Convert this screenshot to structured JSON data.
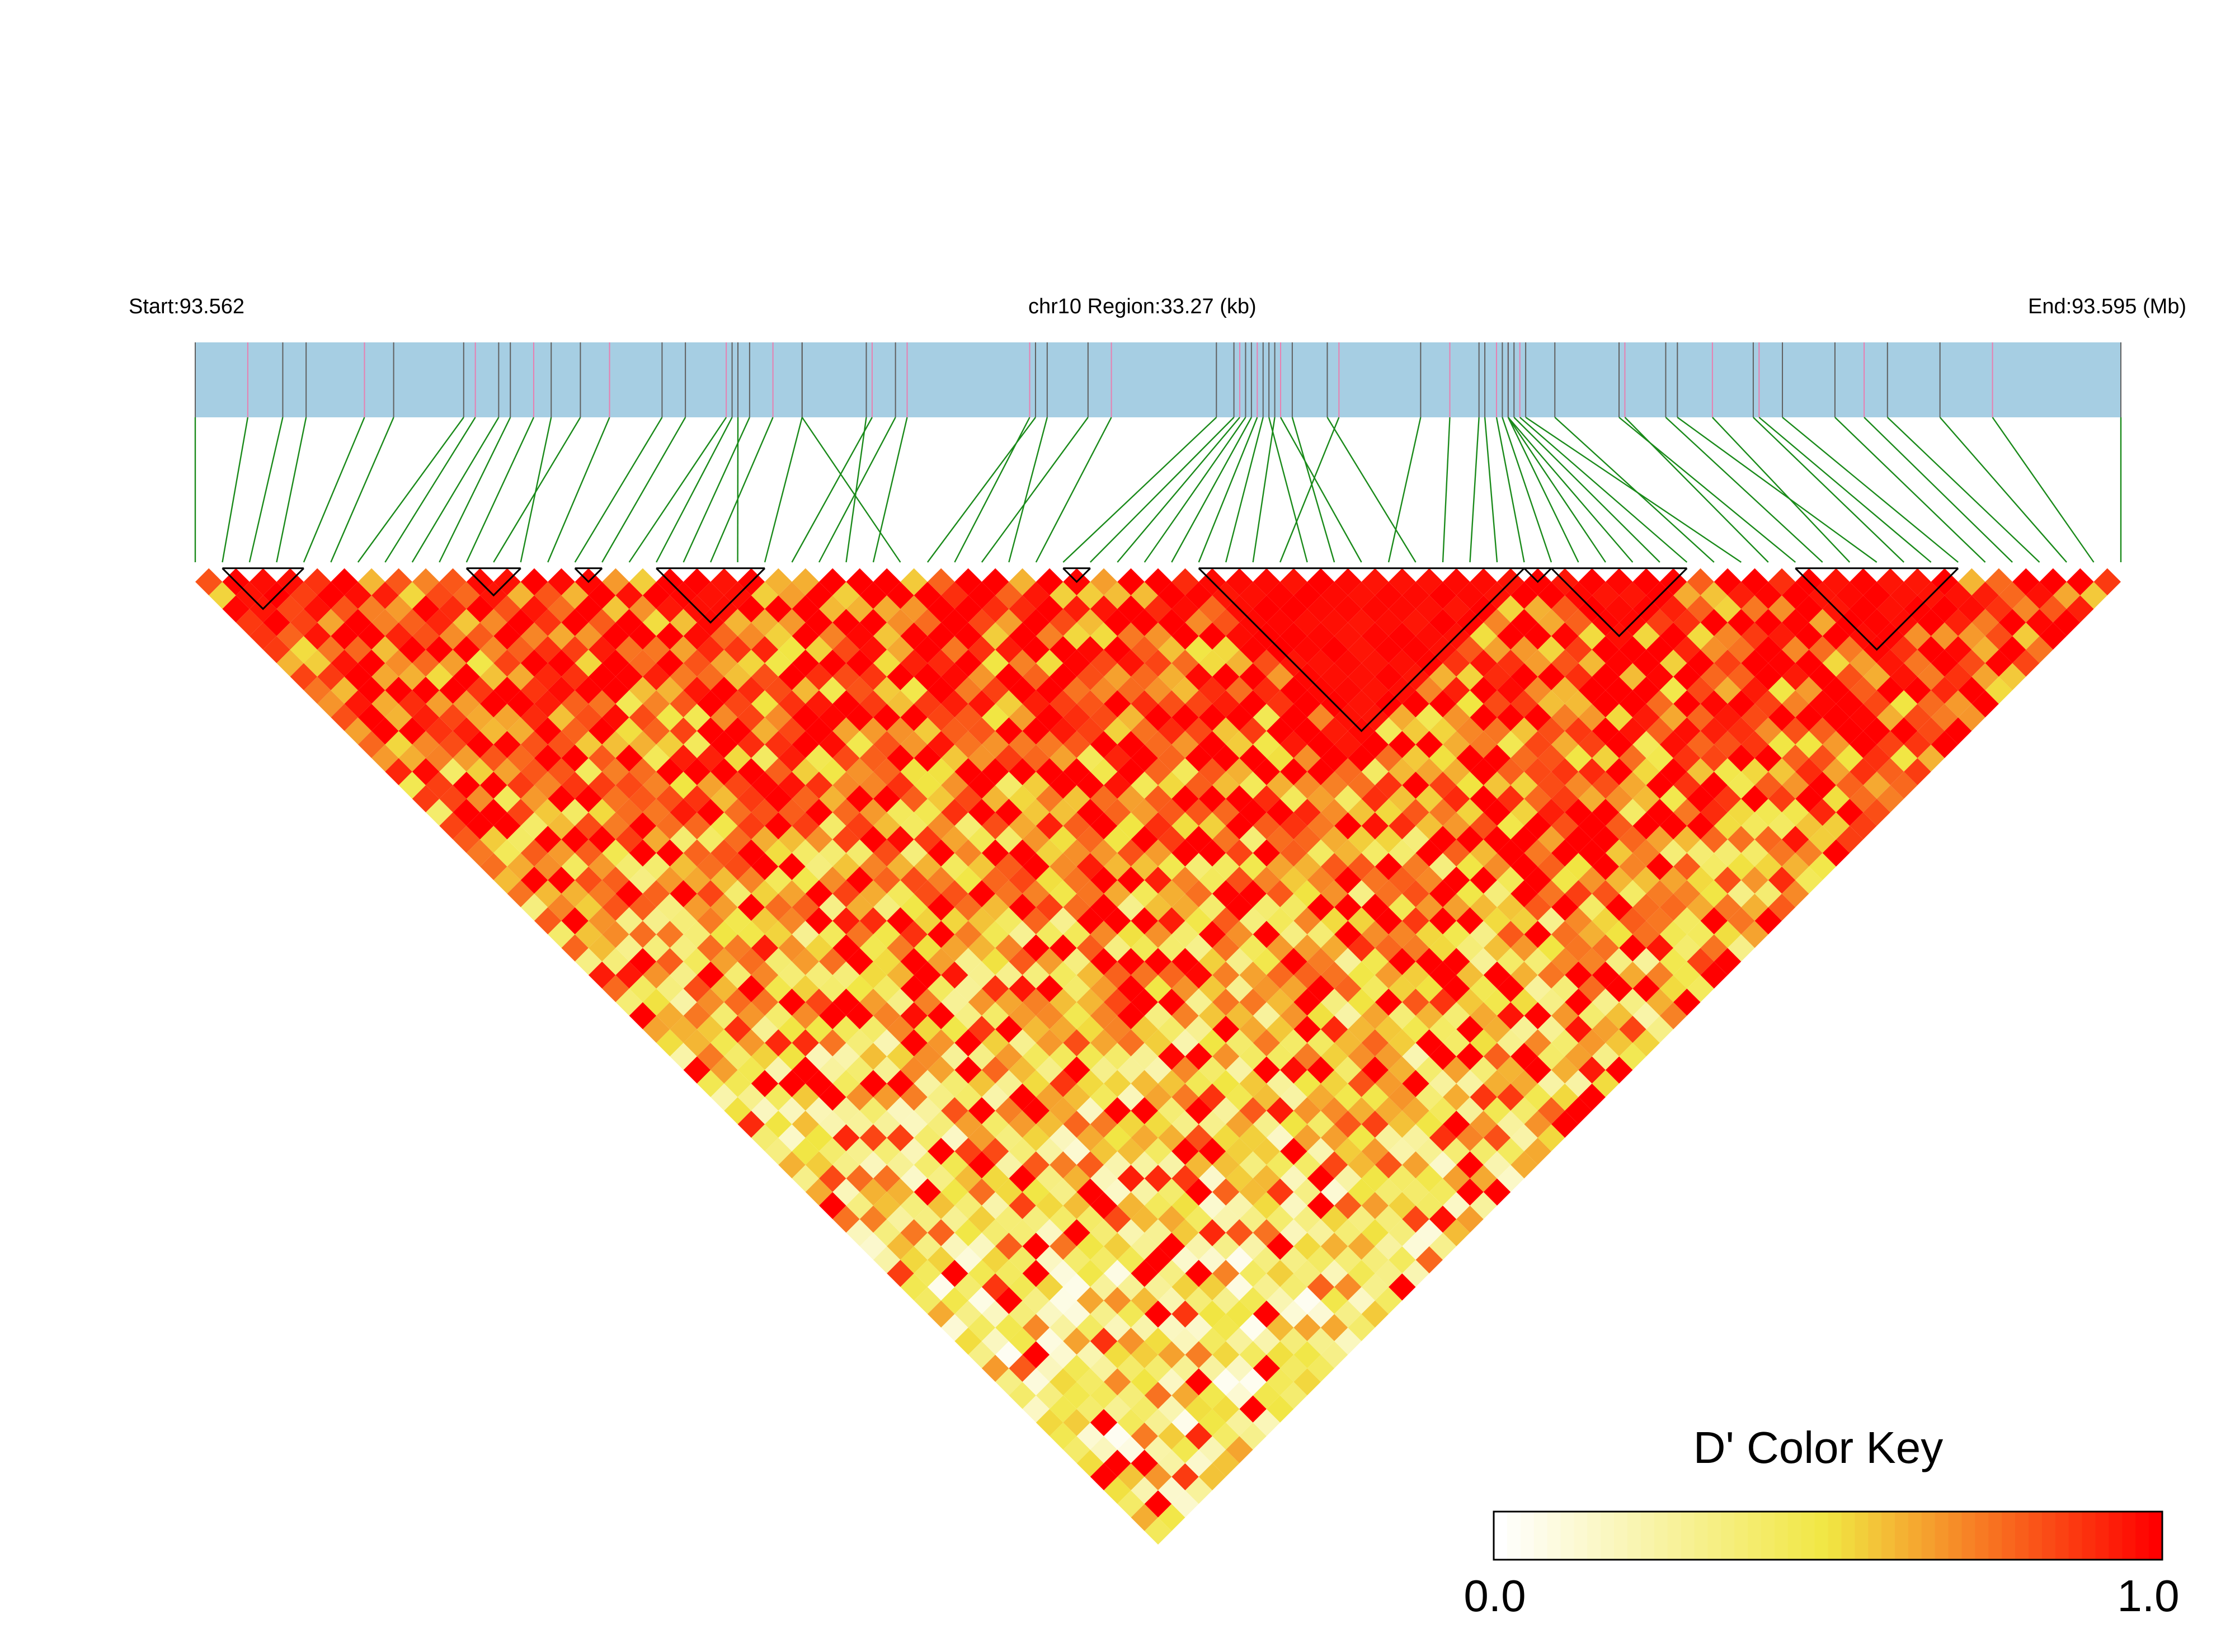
{
  "chart_data": {
    "type": "heatmap",
    "title": "",
    "start_label": "Start:93.562",
    "region_label": "chr10 Region:33.27 (kb)",
    "end_label": "End:93.595 (Mb)",
    "region_start_mb": 93.562,
    "region_end_mb": 93.595,
    "region_length_kb": 33.27,
    "snp_count": 72,
    "snp_positions_mb": [
      93.562,
      93.5629,
      93.5635,
      93.5639,
      93.5649,
      93.5654,
      93.5666,
      93.5668,
      93.5672,
      93.5674,
      93.5678,
      93.5686,
      93.5681,
      93.5691,
      93.57,
      93.5704,
      93.5711,
      93.5712,
      93.5715,
      93.5719,
      93.5713,
      93.5724,
      93.5736,
      93.574,
      93.5735,
      93.5742,
      93.5724,
      93.5764,
      93.5763,
      93.5773,
      93.5766,
      93.5777,
      93.5795,
      93.5798,
      93.5799,
      93.58,
      93.5801,
      93.5802,
      93.5803,
      93.5805,
      93.5816,
      93.5804,
      93.5808,
      93.5806,
      93.583,
      93.5814,
      93.5835,
      93.584,
      93.5841,
      93.5843,
      93.5844,
      93.5845,
      93.5845,
      93.5845,
      93.5846,
      93.5847,
      93.5853,
      93.5848,
      93.5865,
      93.5864,
      93.5872,
      93.588,
      93.5874,
      93.5887,
      93.5888,
      93.5892,
      93.5901,
      93.5906,
      93.591,
      93.5919,
      93.5928,
      93.595
    ],
    "haplotype_blocks_snp_index": [
      [
        1,
        3
      ],
      [
        10,
        11
      ],
      [
        14,
        14
      ],
      [
        17,
        20
      ],
      [
        32,
        32
      ],
      [
        37,
        48
      ],
      [
        49,
        49
      ],
      [
        50,
        54
      ],
      [
        59,
        64
      ]
    ],
    "ld_matrix_note": "D' values between 0.0 and 1.0 for every SNP pair",
    "color_key": {
      "title": "D' Color Key",
      "min_label": "0.0",
      "max_label": "1.0",
      "min": 0.0,
      "max": 1.0,
      "colors": [
        "#ffffff",
        "#f1e642",
        "#ff0000"
      ]
    },
    "colors": {
      "gene_bar": "#a6cee3",
      "snp_tick_dark": "#606060",
      "snp_tick_pink": "#e87fb0",
      "connector": "#1a8a1a",
      "block_outline": "#000000"
    }
  }
}
